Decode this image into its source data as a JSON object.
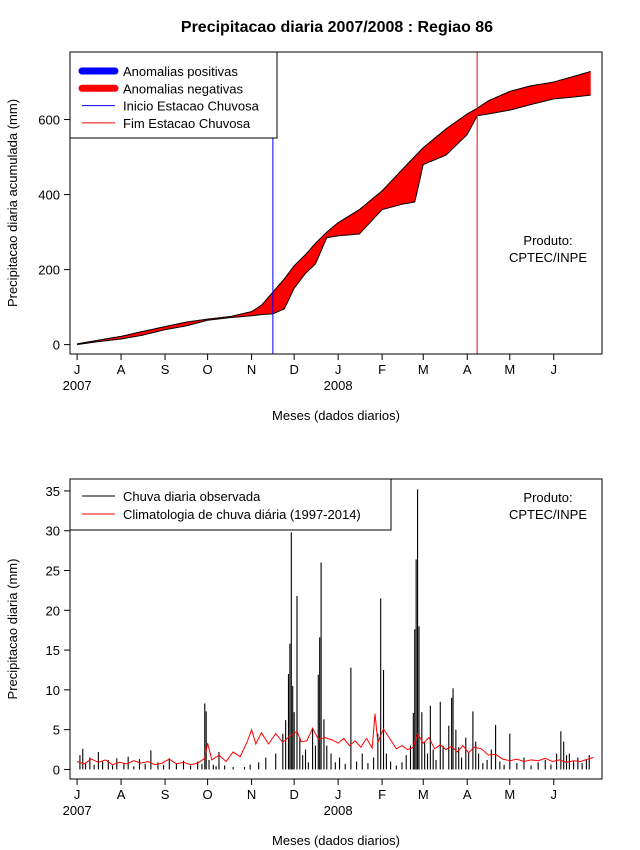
{
  "chart_data": [
    {
      "type": "area",
      "title": "Precipitacao diaria 2007/2008 : Regiao 86",
      "xlabel": "Meses (dados diarios)",
      "ylabel": "Precipitacao diaria acumulada (mm)",
      "ylim": [
        -25,
        780
      ],
      "yticks": [
        0,
        200,
        400,
        600
      ],
      "xlim": [
        -5,
        370
      ],
      "months": [
        {
          "label": "J",
          "day": 0
        },
        {
          "label": "A",
          "day": 31
        },
        {
          "label": "S",
          "day": 62
        },
        {
          "label": "O",
          "day": 92
        },
        {
          "label": "N",
          "day": 123
        },
        {
          "label": "D",
          "day": 153
        },
        {
          "label": "J",
          "day": 184
        },
        {
          "label": "F",
          "day": 215
        },
        {
          "label": "M",
          "day": 244
        },
        {
          "label": "A",
          "day": 275
        },
        {
          "label": "M",
          "day": 305
        },
        {
          "label": "J",
          "day": 336
        }
      ],
      "years": [
        {
          "label": "2007",
          "day": 0
        },
        {
          "label": "2008",
          "day": 184
        }
      ],
      "legend": [
        {
          "label": "Anomalias positivas",
          "color": "#0000ff",
          "kind": "thick"
        },
        {
          "label": "Anomalias negativas",
          "color": "#ff0000",
          "kind": "thick"
        },
        {
          "label": "Inicio Estacao Chuvosa",
          "color": "#0000ff",
          "kind": "thin"
        },
        {
          "label": "Fim Estacao Chuvosa",
          "color": "#ff0000",
          "kind": "thin"
        }
      ],
      "legend_position": "top-left",
      "annotation": [
        "Produto:",
        "CPTEC/INPE"
      ],
      "season_start_day": 138,
      "season_end_day": 282,
      "colors": {
        "negative": "#ff0000",
        "positive": "#0000ff",
        "start": "#0000ff",
        "end": "#ff0000"
      },
      "series": [
        {
          "role": "climatology",
          "points": [
            [
              0,
              2
            ],
            [
              15,
              12
            ],
            [
              31,
              22
            ],
            [
              46,
              35
            ],
            [
              62,
              48
            ],
            [
              77,
              60
            ],
            [
              92,
              68
            ],
            [
              108,
              75
            ],
            [
              123,
              88
            ],
            [
              130,
              105
            ],
            [
              138,
              140
            ],
            [
              146,
              175
            ],
            [
              153,
              210
            ],
            [
              161,
              240
            ],
            [
              168,
              270
            ],
            [
              176,
              300
            ],
            [
              184,
              325
            ],
            [
              199,
              360
            ],
            [
              215,
              410
            ],
            [
              230,
              470
            ],
            [
              244,
              525
            ],
            [
              260,
              575
            ],
            [
              275,
              615
            ],
            [
              282,
              630
            ],
            [
              290,
              650
            ],
            [
              305,
              675
            ],
            [
              320,
              690
            ],
            [
              336,
              700
            ],
            [
              350,
              715
            ],
            [
              362,
              728
            ]
          ]
        },
        {
          "role": "observed",
          "points": [
            [
              0,
              0
            ],
            [
              15,
              8
            ],
            [
              31,
              15
            ],
            [
              46,
              25
            ],
            [
              62,
              40
            ],
            [
              77,
              50
            ],
            [
              92,
              65
            ],
            [
              108,
              72
            ],
            [
              123,
              77
            ],
            [
              130,
              80
            ],
            [
              138,
              82
            ],
            [
              146,
              95
            ],
            [
              153,
              150
            ],
            [
              161,
              190
            ],
            [
              168,
              215
            ],
            [
              176,
              285
            ],
            [
              184,
              290
            ],
            [
              199,
              295
            ],
            [
              215,
              360
            ],
            [
              230,
              375
            ],
            [
              238,
              380
            ],
            [
              244,
              480
            ],
            [
              260,
              505
            ],
            [
              275,
              560
            ],
            [
              282,
              610
            ],
            [
              290,
              615
            ],
            [
              305,
              625
            ],
            [
              320,
              640
            ],
            [
              336,
              655
            ],
            [
              350,
              660
            ],
            [
              362,
              665
            ]
          ]
        }
      ]
    },
    {
      "type": "bar",
      "xlabel": "Meses (dados diarios)",
      "ylabel": "Precipitacao diaria (mm)",
      "ylim": [
        -1.2,
        36.5
      ],
      "yticks": [
        0,
        5,
        10,
        15,
        20,
        25,
        30,
        35
      ],
      "xlim": [
        -5,
        370
      ],
      "months": [
        {
          "label": "J",
          "day": 0
        },
        {
          "label": "A",
          "day": 31
        },
        {
          "label": "S",
          "day": 62
        },
        {
          "label": "O",
          "day": 92
        },
        {
          "label": "N",
          "day": 123
        },
        {
          "label": "D",
          "day": 153
        },
        {
          "label": "J",
          "day": 184
        },
        {
          "label": "F",
          "day": 215
        },
        {
          "label": "M",
          "day": 244
        },
        {
          "label": "A",
          "day": 275
        },
        {
          "label": "M",
          "day": 305
        },
        {
          "label": "J",
          "day": 336
        }
      ],
      "years": [
        {
          "label": "2007",
          "day": 0
        },
        {
          "label": "2008",
          "day": 184
        }
      ],
      "legend": [
        {
          "label": "Chuva diaria observada",
          "color": "#000000"
        },
        {
          "label": "Climatologia de chuva diária (1997-2014)",
          "color": "#ff0000"
        }
      ],
      "legend_position": "top-left",
      "annotation": [
        "Produto:",
        "CPTEC/INPE"
      ],
      "colors": {
        "observed": "#000000",
        "climatology": "#ff0000"
      },
      "observed": [
        [
          2,
          1.8
        ],
        [
          4,
          2.6
        ],
        [
          6,
          0.8
        ],
        [
          9,
          1.5
        ],
        [
          12,
          0.6
        ],
        [
          15,
          2.2
        ],
        [
          18,
          1.0
        ],
        [
          22,
          1.2
        ],
        [
          25,
          0.5
        ],
        [
          28,
          1.4
        ],
        [
          33,
          0.8
        ],
        [
          36,
          1.6
        ],
        [
          40,
          0.4
        ],
        [
          44,
          1.3
        ],
        [
          48,
          0.7
        ],
        [
          52,
          2.4
        ],
        [
          57,
          0.9
        ],
        [
          61,
          0.6
        ],
        [
          65,
          1.4
        ],
        [
          70,
          0.8
        ],
        [
          75,
          1.1
        ],
        [
          80,
          0.5
        ],
        [
          85,
          1.0
        ],
        [
          88,
          0.7
        ],
        [
          90,
          8.3
        ],
        [
          91,
          7.3
        ],
        [
          93,
          1.2
        ],
        [
          96,
          0.6
        ],
        [
          98,
          0.4
        ],
        [
          100,
          2.2
        ],
        [
          104,
          0.5
        ],
        [
          110,
          0.3
        ],
        [
          118,
          0.3
        ],
        [
          122,
          0.6
        ],
        [
          128,
          0.9
        ],
        [
          133,
          1.5
        ],
        [
          140,
          2.0
        ],
        [
          145,
          4.5
        ],
        [
          147,
          6.2
        ],
        [
          149,
          12.0
        ],
        [
          150,
          15.8
        ],
        [
          151,
          29.8
        ],
        [
          152,
          10.5
        ],
        [
          153,
          7.2
        ],
        [
          155,
          21.8
        ],
        [
          157,
          4.0
        ],
        [
          159,
          1.8
        ],
        [
          161,
          2.5
        ],
        [
          163,
          0.9
        ],
        [
          166,
          5.1
        ],
        [
          168,
          3.0
        ],
        [
          170,
          11.9
        ],
        [
          171,
          16.6
        ],
        [
          172,
          26.0
        ],
        [
          174,
          6.3
        ],
        [
          176,
          3.0
        ],
        [
          179,
          2.0
        ],
        [
          182,
          0.9
        ],
        [
          185,
          1.5
        ],
        [
          189,
          0.7
        ],
        [
          193,
          12.8
        ],
        [
          197,
          1.0
        ],
        [
          201,
          2.0
        ],
        [
          205,
          0.8
        ],
        [
          209,
          1.5
        ],
        [
          212,
          4.5
        ],
        [
          214,
          21.5
        ],
        [
          216,
          12.5
        ],
        [
          218,
          2.0
        ],
        [
          221,
          1.0
        ],
        [
          225,
          0.5
        ],
        [
          229,
          0.9
        ],
        [
          232,
          1.8
        ],
        [
          235,
          3.0
        ],
        [
          237,
          7.1
        ],
        [
          238,
          17.6
        ],
        [
          239,
          26.4
        ],
        [
          240,
          35.2
        ],
        [
          241,
          18.0
        ],
        [
          243,
          7.2
        ],
        [
          245,
          3.5
        ],
        [
          247,
          2.0
        ],
        [
          249,
          8.0
        ],
        [
          251,
          2.5
        ],
        [
          253,
          1.2
        ],
        [
          256,
          8.5
        ],
        [
          258,
          3.0
        ],
        [
          262,
          5.5
        ],
        [
          264,
          9.0
        ],
        [
          265,
          10.2
        ],
        [
          267,
          5.0
        ],
        [
          269,
          2.8
        ],
        [
          271,
          1.5
        ],
        [
          274,
          4.0
        ],
        [
          276,
          2.2
        ],
        [
          279,
          7.3
        ],
        [
          281,
          3.5
        ],
        [
          283,
          2.0
        ],
        [
          286,
          0.8
        ],
        [
          289,
          1.2
        ],
        [
          292,
          2.5
        ],
        [
          295,
          5.6
        ],
        [
          298,
          1.0
        ],
        [
          301,
          0.6
        ],
        [
          305,
          4.5
        ],
        [
          310,
          0.8
        ],
        [
          315,
          1.5
        ],
        [
          320,
          0.5
        ],
        [
          325,
          0.9
        ],
        [
          330,
          1.2
        ],
        [
          334,
          0.6
        ],
        [
          338,
          2.0
        ],
        [
          341,
          4.8
        ],
        [
          343,
          3.5
        ],
        [
          345,
          1.8
        ],
        [
          347,
          2.0
        ],
        [
          350,
          1.0
        ],
        [
          353,
          1.5
        ],
        [
          356,
          0.8
        ],
        [
          359,
          1.2
        ],
        [
          361,
          1.8
        ]
      ],
      "climatology": [
        [
          0,
          1.0
        ],
        [
          5,
          0.7
        ],
        [
          10,
          1.3
        ],
        [
          15,
          0.9
        ],
        [
          20,
          1.2
        ],
        [
          25,
          0.6
        ],
        [
          30,
          0.9
        ],
        [
          35,
          0.7
        ],
        [
          40,
          1.1
        ],
        [
          45,
          0.8
        ],
        [
          50,
          1.0
        ],
        [
          55,
          0.6
        ],
        [
          60,
          0.8
        ],
        [
          65,
          1.3
        ],
        [
          70,
          0.7
        ],
        [
          75,
          0.9
        ],
        [
          80,
          0.6
        ],
        [
          85,
          0.8
        ],
        [
          90,
          1.4
        ],
        [
          92,
          3.3
        ],
        [
          95,
          1.2
        ],
        [
          100,
          1.8
        ],
        [
          105,
          1.0
        ],
        [
          110,
          2.2
        ],
        [
          115,
          1.6
        ],
        [
          120,
          3.5
        ],
        [
          123,
          5.0
        ],
        [
          126,
          3.2
        ],
        [
          130,
          4.6
        ],
        [
          135,
          3.2
        ],
        [
          140,
          4.5
        ],
        [
          145,
          3.4
        ],
        [
          150,
          4.2
        ],
        [
          155,
          4.8
        ],
        [
          158,
          3.5
        ],
        [
          162,
          3.6
        ],
        [
          166,
          5.2
        ],
        [
          170,
          3.8
        ],
        [
          175,
          4.0
        ],
        [
          180,
          3.7
        ],
        [
          184,
          3.3
        ],
        [
          188,
          3.9
        ],
        [
          192,
          3.0
        ],
        [
          196,
          3.6
        ],
        [
          200,
          2.8
        ],
        [
          204,
          3.9
        ],
        [
          208,
          2.7
        ],
        [
          210,
          7.0
        ],
        [
          212,
          3.4
        ],
        [
          216,
          5.1
        ],
        [
          220,
          4.0
        ],
        [
          225,
          2.6
        ],
        [
          229,
          3.0
        ],
        [
          233,
          2.5
        ],
        [
          237,
          2.8
        ],
        [
          240,
          4.5
        ],
        [
          244,
          3.3
        ],
        [
          248,
          4.0
        ],
        [
          252,
          2.6
        ],
        [
          256,
          3.1
        ],
        [
          260,
          2.5
        ],
        [
          264,
          2.9
        ],
        [
          268,
          2.2
        ],
        [
          272,
          3.0
        ],
        [
          276,
          2.1
        ],
        [
          280,
          2.8
        ],
        [
          285,
          2.6
        ],
        [
          290,
          1.8
        ],
        [
          295,
          1.9
        ],
        [
          300,
          1.3
        ],
        [
          305,
          1.1
        ],
        [
          310,
          1.3
        ],
        [
          315,
          1.0
        ],
        [
          320,
          1.2
        ],
        [
          325,
          1.1
        ],
        [
          330,
          1.4
        ],
        [
          335,
          1.0
        ],
        [
          340,
          1.2
        ],
        [
          345,
          0.9
        ],
        [
          350,
          1.1
        ],
        [
          355,
          1.0
        ],
        [
          360,
          1.3
        ],
        [
          364,
          1.5
        ]
      ]
    }
  ]
}
